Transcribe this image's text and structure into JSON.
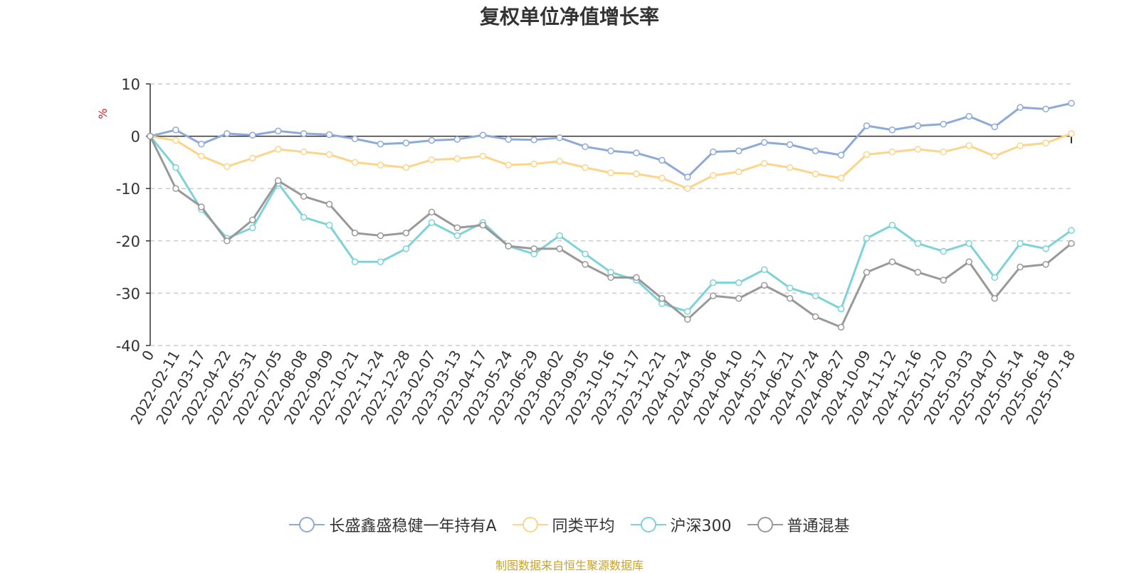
{
  "title": "复权单位净值增长率",
  "source_note": "制图数据来自恒生聚源数据库",
  "chart_data": {
    "type": "line",
    "title": "复权单位净值增长率",
    "ylabel": "%",
    "ylim": [
      -40,
      10
    ],
    "yticks": [
      10,
      0,
      -10,
      -20,
      -30,
      -40
    ],
    "grid": true,
    "legend_position": "bottom",
    "categories": [
      "0",
      "2022-02-11",
      "2022-03-17",
      "2022-04-22",
      "2022-05-31",
      "2022-07-05",
      "2022-08-08",
      "2022-09-09",
      "2022-10-21",
      "2022-11-24",
      "2022-12-28",
      "2023-02-07",
      "2023-03-13",
      "2023-04-17",
      "2023-05-24",
      "2023-06-29",
      "2023-08-02",
      "2023-09-05",
      "2023-10-16",
      "2023-11-17",
      "2023-12-21",
      "2024-01-24",
      "2024-03-06",
      "2024-04-10",
      "2024-05-17",
      "2024-06-21",
      "2024-07-24",
      "2024-08-27",
      "2024-10-09",
      "2024-11-12",
      "2024-12-16",
      "2025-01-20",
      "2025-03-03",
      "2025-04-07",
      "2025-05-14",
      "2025-06-18",
      "2025-07-18"
    ],
    "series": [
      {
        "name": "长盛鑫盛稳健一年持有A",
        "color": "#8eaad8",
        "values": [
          0,
          1.2,
          -1.5,
          0.5,
          0.2,
          1.0,
          0.5,
          0.3,
          -0.5,
          -1.5,
          -1.3,
          -0.8,
          -0.6,
          0.2,
          -0.6,
          -0.7,
          -0.3,
          -2.0,
          -2.8,
          -3.2,
          -4.6,
          -7.8,
          -3.0,
          -2.8,
          -1.2,
          -1.6,
          -2.8,
          -3.6,
          2.0,
          1.2,
          2.0,
          2.3,
          3.8,
          1.8,
          5.5,
          5.2,
          6.3
        ]
      },
      {
        "name": "同类平均",
        "color": "#fcd48a",
        "values": [
          0,
          -0.8,
          -3.8,
          -5.8,
          -4.2,
          -2.5,
          -3.0,
          -3.5,
          -5.0,
          -5.5,
          -6.0,
          -4.5,
          -4.3,
          -3.8,
          -5.5,
          -5.3,
          -4.8,
          -6.0,
          -7.0,
          -7.2,
          -8.0,
          -10.0,
          -7.5,
          -6.8,
          -5.2,
          -6.0,
          -7.2,
          -8.0,
          -3.5,
          -3.0,
          -2.5,
          -3.0,
          -1.8,
          -3.8,
          -1.8,
          -1.3,
          0.5
        ]
      },
      {
        "name": "沪深300",
        "color": "#7dd3d8",
        "values": [
          0,
          -6.0,
          -14.0,
          -19.5,
          -17.5,
          -9.0,
          -15.5,
          -17.0,
          -24.0,
          -24.0,
          -21.5,
          -16.5,
          -19.0,
          -16.5,
          -21.0,
          -22.5,
          -19.0,
          -22.5,
          -26.0,
          -27.5,
          -32.0,
          -33.5,
          -28.0,
          -28.0,
          -25.5,
          -29.0,
          -30.5,
          -33.0,
          -19.5,
          -17.0,
          -20.5,
          -22.0,
          -20.5,
          -27.0,
          -20.5,
          -21.5,
          -18.0
        ]
      },
      {
        "name": "普通混基",
        "color": "#999999",
        "values": [
          0,
          -10.0,
          -13.5,
          -20.0,
          -16.0,
          -8.5,
          -11.5,
          -13.0,
          -18.5,
          -19.0,
          -18.5,
          -14.5,
          -17.5,
          -17.0,
          -21.0,
          -21.5,
          -21.5,
          -24.5,
          -27.0,
          -27.0,
          -31.0,
          -35.0,
          -30.5,
          -31.0,
          -28.5,
          -31.0,
          -34.5,
          -36.5,
          -26.0,
          -24.0,
          -26.0,
          -27.5,
          -24.0,
          -31.0,
          -25.0,
          -24.5,
          -20.5
        ]
      }
    ]
  }
}
